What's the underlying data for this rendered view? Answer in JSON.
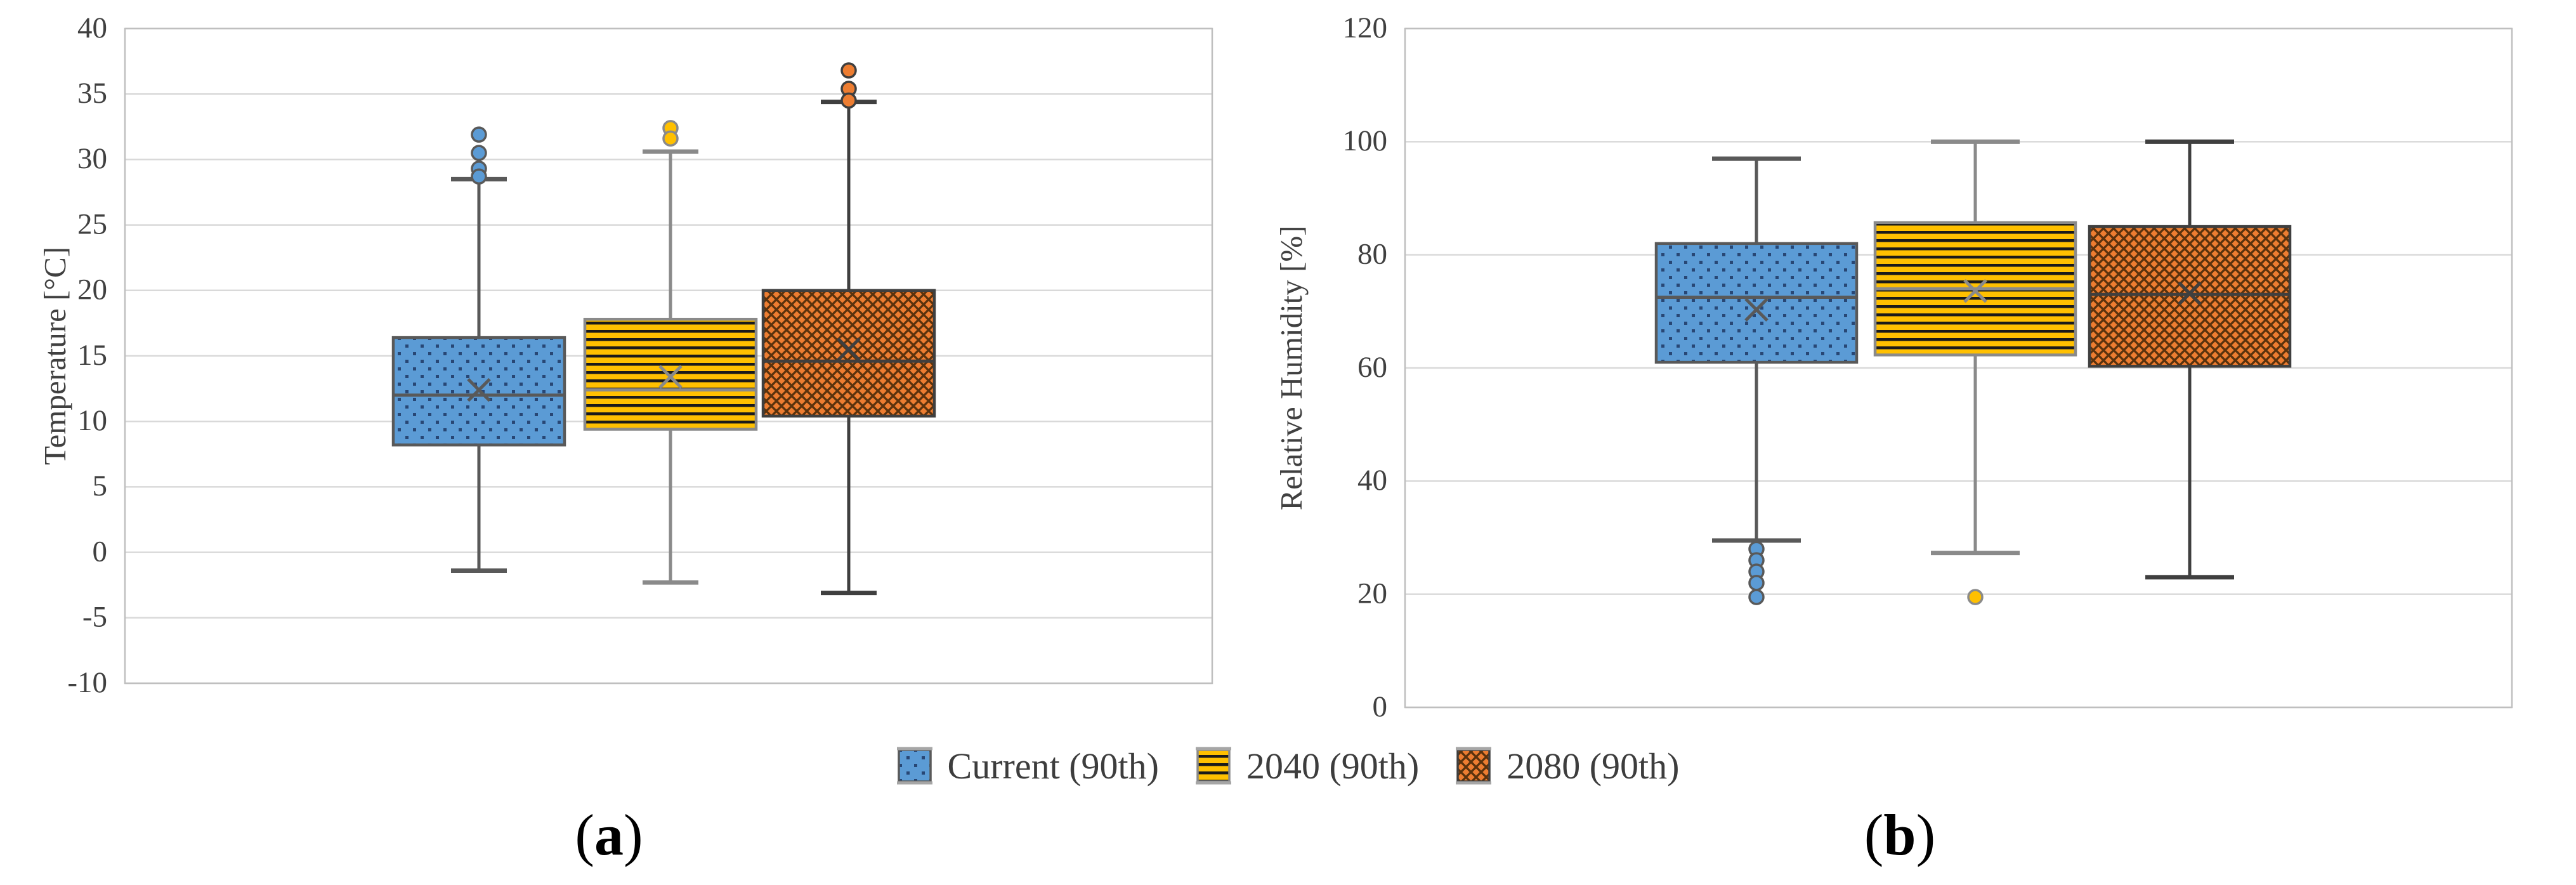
{
  "figure_background": "#ffffff",
  "palette": {
    "grid_color": "#d9d9d9",
    "frame_color": "#bfbfbf",
    "tick_text_color": "#404040",
    "caption_color": "#000000"
  },
  "captions": {
    "a": {
      "open": "(",
      "letter": "a",
      "close": ")"
    },
    "b": {
      "open": "(",
      "letter": "b",
      "close": ")"
    }
  },
  "legend": {
    "position": "bottom-center",
    "items": [
      {
        "label": "Current (90th)",
        "pattern": "dots",
        "fill": "#5B9BD5"
      },
      {
        "label": "2040 (90th)",
        "pattern": "hstripes",
        "fill": "#FFC000"
      },
      {
        "label": "2080 (90th)",
        "pattern": "crosshatch",
        "fill": "#ED7D31"
      }
    ]
  },
  "chart_data": [
    {
      "id": "a",
      "type": "boxplot",
      "title": "",
      "xlabel": "",
      "ylabel": "Temperature [°C]",
      "ylim": [
        -10,
        40
      ],
      "yticks": [
        40,
        35,
        30,
        25,
        20,
        15,
        10,
        5,
        0,
        -5,
        -10
      ],
      "grid": true,
      "caption": "(a)",
      "series": [
        {
          "name": "Current (90th)",
          "pattern": "dots",
          "fill": "#5B9BD5",
          "stroke": "#595959",
          "accent": "#1F3864",
          "whisker_low": -1.4,
          "q1": 8.2,
          "median": 12.0,
          "mean": 12.4,
          "q3": 16.4,
          "whisker_high": 28.5,
          "outliers": [
            31.9,
            30.5,
            29.3,
            28.7
          ]
        },
        {
          "name": "2040 (90th)",
          "pattern": "hstripes",
          "fill": "#FFC000",
          "stroke": "#8a8a8a",
          "accent": "#1a1a1a",
          "whisker_low": -2.3,
          "q1": 9.4,
          "median": 12.4,
          "mean": 13.4,
          "q3": 17.8,
          "whisker_high": 30.6,
          "outliers": [
            32.4,
            31.6
          ]
        },
        {
          "name": "2080 (90th)",
          "pattern": "crosshatch",
          "fill": "#ED7D31",
          "stroke": "#3f3f3f",
          "accent": "#4a2a08",
          "whisker_low": -3.1,
          "q1": 10.4,
          "median": 14.6,
          "mean": 15.5,
          "q3": 20.0,
          "whisker_high": 34.4,
          "outliers": [
            36.8,
            35.4,
            34.5
          ]
        }
      ]
    },
    {
      "id": "b",
      "type": "boxplot",
      "title": "",
      "xlabel": "",
      "ylabel": "Relative Humidity [%]",
      "ylim": [
        0,
        120
      ],
      "yticks": [
        120,
        100,
        80,
        60,
        40,
        20,
        0
      ],
      "grid": true,
      "caption": "(b)",
      "series": [
        {
          "name": "Current (90th)",
          "pattern": "dots",
          "fill": "#5B9BD5",
          "stroke": "#595959",
          "accent": "#1F3864",
          "whisker_low": 29.5,
          "q1": 61.0,
          "median": 72.5,
          "mean": 70.3,
          "q3": 82.0,
          "whisker_high": 97.0,
          "outliers": [
            28.0,
            26.0,
            24.0,
            22.0,
            19.5
          ]
        },
        {
          "name": "2040 (90th)",
          "pattern": "hstripes",
          "fill": "#FFC000",
          "stroke": "#8a8a8a",
          "accent": "#1a1a1a",
          "whisker_low": 27.3,
          "q1": 62.3,
          "median": 74.0,
          "mean": 73.6,
          "q3": 85.7,
          "whisker_high": 100.0,
          "outliers": [
            19.5
          ]
        },
        {
          "name": "2080 (90th)",
          "pattern": "crosshatch",
          "fill": "#ED7D31",
          "stroke": "#3f3f3f",
          "accent": "#4a2a08",
          "whisker_low": 23.0,
          "q1": 60.3,
          "median": 73.0,
          "mean": 73.2,
          "q3": 85.0,
          "whisker_high": 100.0,
          "outliers": []
        }
      ]
    }
  ]
}
